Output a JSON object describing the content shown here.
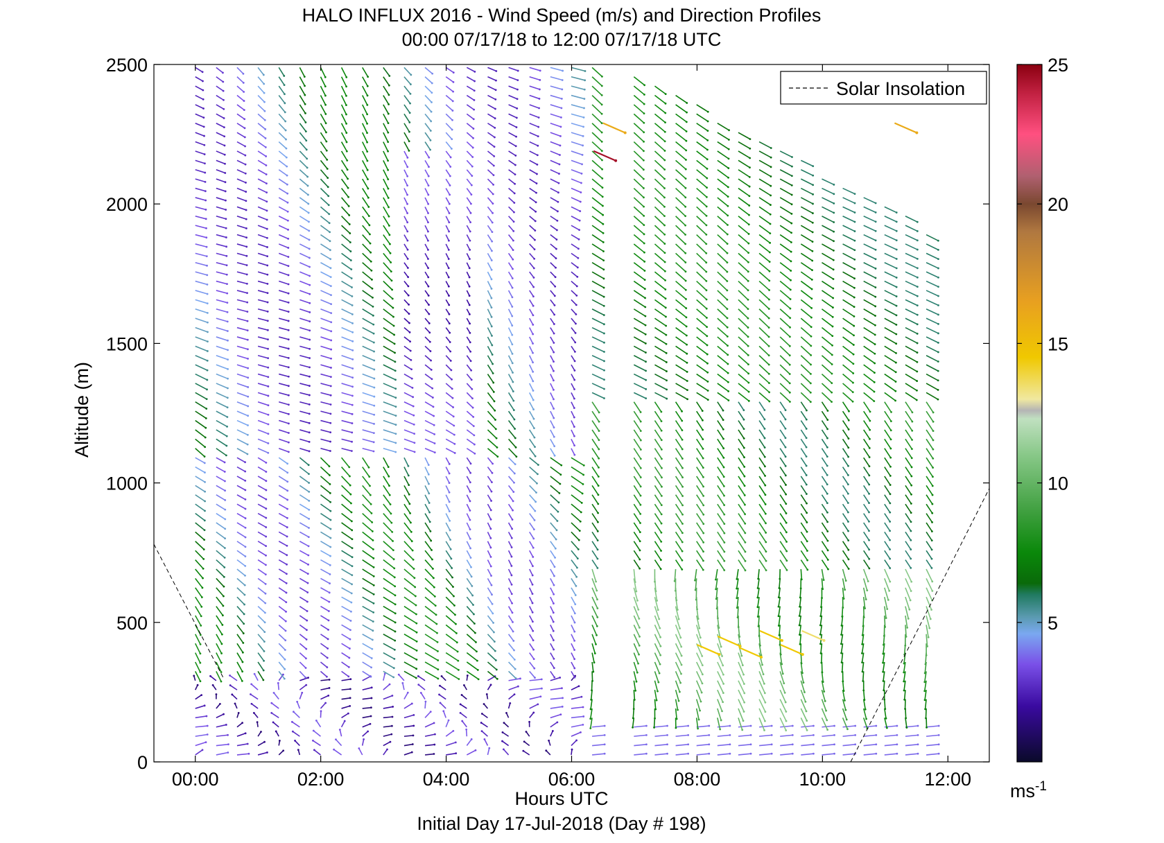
{
  "chart_data": {
    "type": "wind_barb_profile",
    "title": "HALO INFLUX 2016 - Wind Speed (m/s) and Direction Profiles",
    "subtitle": "00:00 07/17/18 to 12:00 07/17/18  UTC",
    "xlabel": "Hours UTC",
    "xlabel2": "Initial Day 17-Jul-2018 (Day # 198)",
    "ylabel": "Altitude (m)",
    "xlim_hours": [
      -0.66,
      12.66
    ],
    "ylim": [
      0,
      2500
    ],
    "x_ticks": [
      {
        "value": 0,
        "label": "00:00"
      },
      {
        "value": 2,
        "label": "02:00"
      },
      {
        "value": 4,
        "label": "04:00"
      },
      {
        "value": 6,
        "label": "06:00"
      },
      {
        "value": 8,
        "label": "08:00"
      },
      {
        "value": 10,
        "label": "10:00"
      },
      {
        "value": 12,
        "label": "12:00"
      }
    ],
    "y_ticks": [
      {
        "value": 0,
        "label": "0"
      },
      {
        "value": 500,
        "label": "500"
      },
      {
        "value": 1000,
        "label": "1000"
      },
      {
        "value": 1500,
        "label": "1500"
      },
      {
        "value": 2000,
        "label": "2000"
      },
      {
        "value": 2500,
        "label": "2500"
      }
    ],
    "legend": {
      "label": "Solar Insolation",
      "placement": "top-right",
      "style": "dashed"
    },
    "colorbar": {
      "unit": "ms-1",
      "unit_base": "ms",
      "unit_exp": "-1",
      "range": [
        0,
        25
      ],
      "tick_values": [
        5,
        10,
        15,
        20,
        25
      ],
      "tick_labels": [
        "5",
        "10",
        "15",
        "20",
        "25"
      ],
      "stops": [
        {
          "v": 0,
          "color": "#0a0a2a"
        },
        {
          "v": 2,
          "color": "#3a0aa0"
        },
        {
          "v": 3.5,
          "color": "#7a50e8"
        },
        {
          "v": 4.6,
          "color": "#7aa8f0"
        },
        {
          "v": 5.2,
          "color": "#5a9ab0"
        },
        {
          "v": 6.0,
          "color": "#207a60"
        },
        {
          "v": 6.4,
          "color": "#0a6a0a"
        },
        {
          "v": 7.5,
          "color": "#0a880a"
        },
        {
          "v": 9.0,
          "color": "#40a040"
        },
        {
          "v": 11.0,
          "color": "#88c888"
        },
        {
          "v": 12.3,
          "color": "#c0e0c0"
        },
        {
          "v": 12.6,
          "color": "#b4b4b4"
        },
        {
          "v": 13.0,
          "color": "#f0e8a0"
        },
        {
          "v": 14.5,
          "color": "#f0c800"
        },
        {
          "v": 16.5,
          "color": "#e8a020"
        },
        {
          "v": 19.0,
          "color": "#b07840"
        },
        {
          "v": 20.0,
          "color": "#7a4830"
        },
        {
          "v": 21.0,
          "color": "#b06070"
        },
        {
          "v": 22.5,
          "color": "#ff5080"
        },
        {
          "v": 24.0,
          "color": "#c02040"
        },
        {
          "v": 25.0,
          "color": "#8a0010"
        }
      ]
    },
    "solar_insolation": {
      "segments": [
        {
          "x": [
            -0.66,
            0.45
          ],
          "y": [
            780,
            300
          ]
        },
        {
          "x": [
            10.45,
            12.66
          ],
          "y": [
            0,
            980
          ]
        }
      ]
    },
    "profiles": {
      "start_hour": 0.0,
      "end_hour": 11.83,
      "step_hour": 0.333,
      "altitude_step_m": 33.3,
      "max_altitude_m": 2500,
      "gap_hours": [
        6.55,
        6.8
      ]
    },
    "highlights": [
      {
        "hour": 6.35,
        "alt": 2190,
        "speed": 24.5
      },
      {
        "hour": 6.5,
        "alt": 2290,
        "speed": 16
      },
      {
        "hour": 11.15,
        "alt": 2290,
        "speed": 16
      },
      {
        "hour": 8.0,
        "alt": 420,
        "speed": 14.5
      },
      {
        "hour": 8.33,
        "alt": 450,
        "speed": 14.5
      },
      {
        "hour": 8.67,
        "alt": 410,
        "speed": 14.5
      },
      {
        "hour": 9.0,
        "alt": 470,
        "speed": 14.5
      },
      {
        "hour": 9.33,
        "alt": 420,
        "speed": 14.5
      },
      {
        "hour": 9.67,
        "alt": 470,
        "speed": 13.5
      }
    ]
  }
}
